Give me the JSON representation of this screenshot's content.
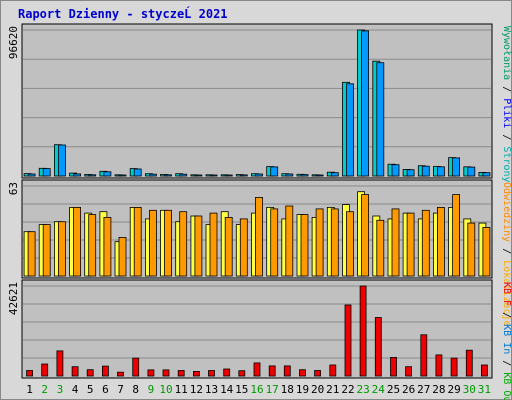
{
  "chart_data": {
    "type": "bar",
    "title": "Raport Dzienny -  styczeĹ  2021",
    "categories": [
      "1",
      "2",
      "3",
      "4",
      "5",
      "6",
      "7",
      "8",
      "9",
      "10",
      "11",
      "12",
      "13",
      "14",
      "15",
      "16",
      "17",
      "18",
      "19",
      "20",
      "21",
      "22",
      "23",
      "24",
      "25",
      "26",
      "27",
      "28",
      "29",
      "30",
      "31"
    ],
    "weekend_days": [
      "2",
      "3",
      "9",
      "10",
      "16",
      "17",
      "23",
      "24",
      "30",
      "31"
    ],
    "colors": {
      "frame_bg": "#d8d8d8",
      "plot_bg": "#c0c0c0",
      "title": "#0000cc",
      "hits": "#00cccc",
      "files": "#0099ff",
      "pages": "#ffff44",
      "visits": "#ff9900",
      "kb": "#ee0000",
      "weekend_label": "#009900",
      "weekday_label": "#000000"
    },
    "panels": [
      {
        "name": "top",
        "ymax_label": "96620",
        "ymax": 96620,
        "right_legend": [
          {
            "text": "Wywołania",
            "color": "#009966"
          },
          {
            "text": " / ",
            "color": "#000000"
          },
          {
            "text": "Pliki",
            "color": "#0000ff"
          },
          {
            "text": " / ",
            "color": "#000000"
          },
          {
            "text": "Strony",
            "color": "#00aaaa"
          }
        ],
        "series": [
          {
            "key": "hits",
            "values": [
              1600,
              5100,
              20700,
              1900,
              1000,
              3100,
              800,
              4900,
              1500,
              1000,
              1500,
              800,
              800,
              800,
              900,
              1500,
              6200,
              1500,
              1100,
              800,
              2500,
              62000,
              96620,
              76000,
              7800,
              4400,
              6800,
              6300,
              12200,
              6100,
              2400
            ]
          },
          {
            "key": "files",
            "values": [
              1300,
              4900,
              20500,
              1400,
              800,
              2800,
              600,
              4600,
              1200,
              800,
              1200,
              600,
              600,
              600,
              700,
              1300,
              6000,
              1300,
              900,
              600,
              2200,
              61000,
              96000,
              75000,
              7500,
              4200,
              6500,
              6100,
              12000,
              5900,
              2200
            ]
          }
        ]
      },
      {
        "name": "middle",
        "ymax_label": "63",
        "ymax": 63,
        "right_legend": [
          {
            "text": "Odwiedziny",
            "color": "#ff8800"
          },
          {
            "text": " / ",
            "color": "#000000"
          },
          {
            "text": "Lokalizacje",
            "color": "#ffaa00"
          }
        ],
        "series": [
          {
            "key": "pages",
            "values": [
              31,
              36,
              38,
              48,
              44,
              45,
              24,
              48,
              40,
              46,
              38,
              42,
              36,
              45,
              36,
              44,
              48,
              40,
              43,
              41,
              48,
              50,
              59,
              42,
              40,
              44,
              40,
              44,
              48,
              40,
              37
            ]
          },
          {
            "key": "visits",
            "values": [
              31,
              36,
              38,
              48,
              43,
              41,
              27,
              48,
              46,
              46,
              45,
              42,
              44,
              41,
              40,
              55,
              47,
              49,
              43,
              47,
              47,
              45,
              57,
              39,
              47,
              44,
              46,
              48,
              57,
              37,
              34
            ]
          }
        ]
      },
      {
        "name": "bottom",
        "ymax_label": "42621",
        "ymax": 42621,
        "right_legend": [
          {
            "text": "KB F",
            "color": "#ee0000"
          },
          {
            "text": " / ",
            "color": "#000000"
          },
          {
            "text": "KB In",
            "color": "#0077cc"
          },
          {
            "text": " / ",
            "color": "#000000"
          },
          {
            "text": "KB Out",
            "color": "#00aa00"
          }
        ],
        "series": [
          {
            "key": "kb",
            "values": [
              2600,
              5700,
              11900,
              4400,
              3000,
              4700,
              1800,
              8500,
              2900,
              2900,
              2600,
              2200,
              2600,
              3300,
              2500,
              6200,
              4800,
              4800,
              3000,
              2600,
              5200,
              33600,
              42621,
              27700,
              8800,
              4400,
              19500,
              10000,
              8500,
              12200,
              5200
            ]
          }
        ]
      }
    ]
  }
}
